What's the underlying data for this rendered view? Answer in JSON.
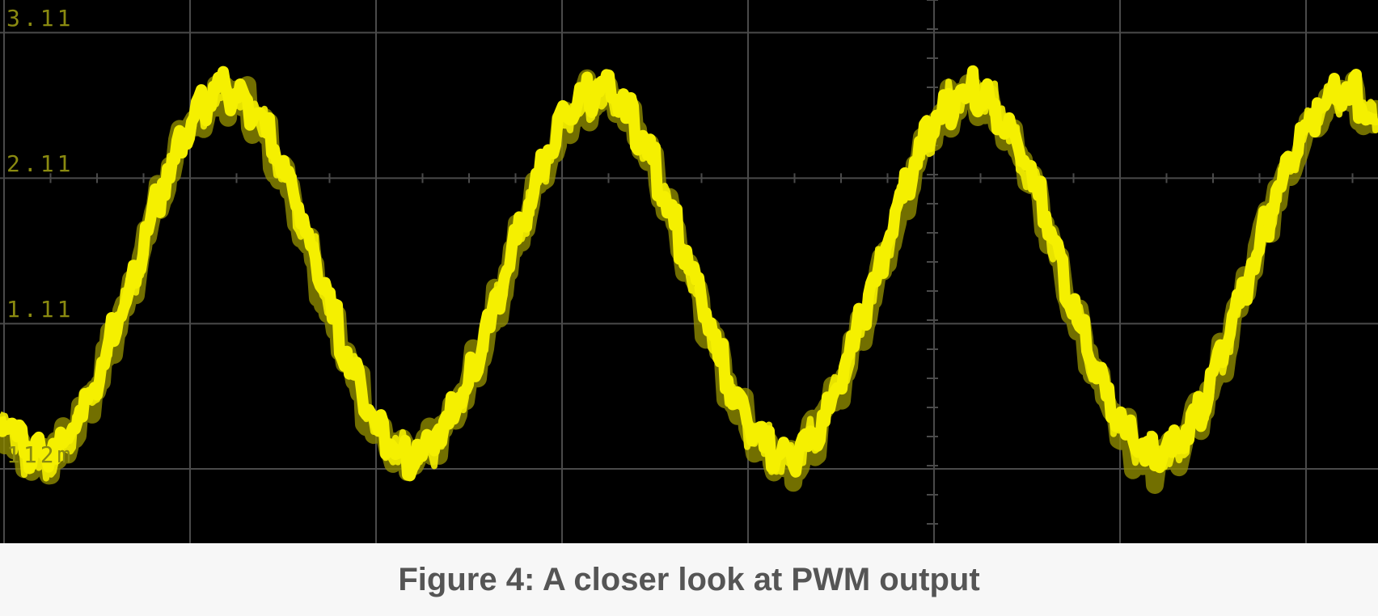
{
  "caption": "Figure 4: A closer look at PWM output",
  "colors": {
    "background": "#000000",
    "grid": "#4a4a4a",
    "trace": "#f5f000",
    "trace_shadow": "#8f8b00",
    "axis_label": "#8a8a10",
    "caption": "#555555",
    "page": "#f7f7f7"
  },
  "chart_data": {
    "type": "line",
    "title": "",
    "xlabel": "",
    "ylabel": "",
    "ytick_labels": [
      "3.11",
      "2.11",
      "1.11",
      "112m"
    ],
    "yticks": [
      3.11,
      2.11,
      1.11,
      0.112
    ],
    "ylim": [
      -0.4,
      3.33
    ],
    "x_divisions": 7.4,
    "grid": true,
    "series": [
      {
        "waveform": "sine with PWM ripple",
        "cycles_visible": 3.7,
        "min": 0.2,
        "max": 2.7,
        "mean": 1.45
      }
    ]
  }
}
